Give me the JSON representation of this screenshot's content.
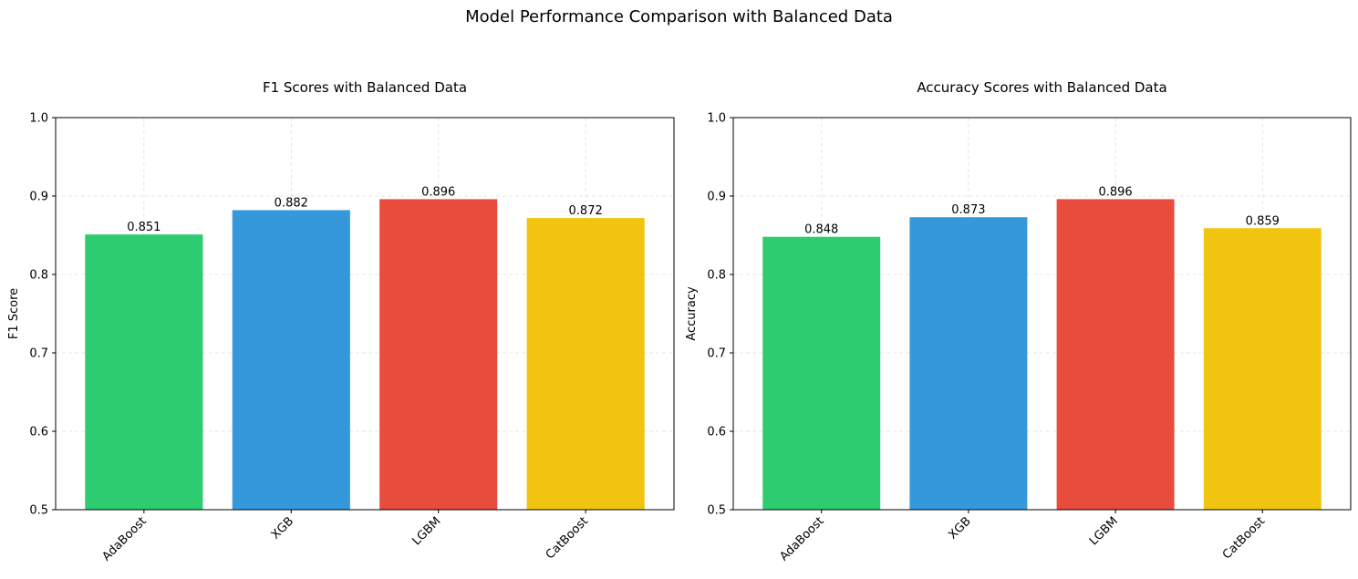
{
  "figure_title": "Model Performance Comparison with Balanced Data",
  "chart_data": [
    {
      "type": "bar",
      "title": "F1 Scores with Balanced Data",
      "xlabel": "",
      "ylabel": "F1 Score",
      "categories": [
        "AdaBoost",
        "XGB",
        "LGBM",
        "CatBoost"
      ],
      "values": [
        0.851,
        0.882,
        0.896,
        0.872
      ],
      "value_labels": [
        "0.851",
        "0.882",
        "0.896",
        "0.872"
      ],
      "colors": [
        "#2ecc71",
        "#3498db",
        "#e74c3c",
        "#f1c40f"
      ],
      "ylim": [
        0.5,
        1.0
      ],
      "yticks": [
        0.5,
        0.6,
        0.7,
        0.8,
        0.9,
        1.0
      ],
      "ytick_labels": [
        "0.5",
        "0.6",
        "0.7",
        "0.8",
        "0.9",
        "1.0"
      ],
      "grid": true
    },
    {
      "type": "bar",
      "title": "Accuracy Scores with Balanced Data",
      "xlabel": "",
      "ylabel": "Accuracy",
      "categories": [
        "AdaBoost",
        "XGB",
        "LGBM",
        "CatBoost"
      ],
      "values": [
        0.848,
        0.873,
        0.896,
        0.859
      ],
      "value_labels": [
        "0.848",
        "0.873",
        "0.896",
        "0.859"
      ],
      "colors": [
        "#2ecc71",
        "#3498db",
        "#e74c3c",
        "#f1c40f"
      ],
      "ylim": [
        0.5,
        1.0
      ],
      "yticks": [
        0.5,
        0.6,
        0.7,
        0.8,
        0.9,
        1.0
      ],
      "ytick_labels": [
        "0.5",
        "0.6",
        "0.7",
        "0.8",
        "0.9",
        "1.0"
      ],
      "grid": true
    }
  ]
}
